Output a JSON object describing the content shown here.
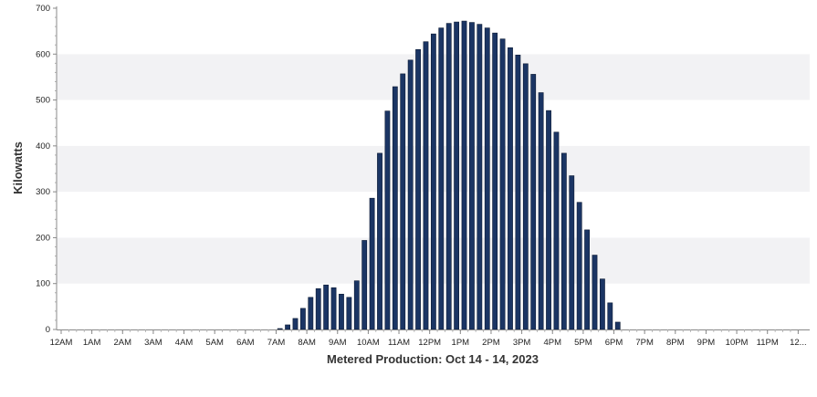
{
  "chart_data": {
    "type": "bar",
    "title": "",
    "xlabel": "Metered Production: Oct 14 - 14, 2023",
    "ylabel": "Kilowatts",
    "ylim": [
      0,
      700
    ],
    "y_ticks": [
      0,
      100,
      200,
      300,
      400,
      500,
      600,
      700
    ],
    "x_tick_labels": [
      "12AM",
      "1AM",
      "2AM",
      "3AM",
      "4AM",
      "5AM",
      "6AM",
      "7AM",
      "8AM",
      "9AM",
      "10AM",
      "11AM",
      "12PM",
      "1PM",
      "2PM",
      "3PM",
      "4PM",
      "5PM",
      "6PM",
      "7PM",
      "8PM",
      "9PM",
      "10PM",
      "11PM",
      "12..."
    ],
    "grid": "horizontal bands",
    "legend": "none",
    "interval": "15 minutes",
    "bar_color": "#1b3564",
    "series": [
      {
        "values": [
          0,
          0,
          0,
          0,
          0,
          0,
          0,
          0,
          0,
          0,
          0,
          0,
          0,
          0,
          0,
          0,
          0,
          0,
          0,
          0,
          0,
          0,
          0,
          0,
          0,
          0,
          0,
          0,
          2,
          10,
          24,
          46,
          70,
          89,
          97,
          91,
          77,
          70,
          106,
          194,
          286,
          384,
          476,
          529,
          557,
          587,
          610,
          627,
          644,
          657,
          667,
          670,
          672,
          669,
          665,
          657,
          646,
          633,
          614,
          598,
          579,
          556,
          516,
          477,
          430,
          384,
          335,
          277,
          217,
          162,
          110,
          58,
          16,
          0,
          0,
          0,
          0,
          0,
          0,
          0,
          0,
          0,
          0,
          0,
          0,
          0,
          0,
          0,
          0,
          0,
          0,
          0
        ]
      }
    ]
  }
}
